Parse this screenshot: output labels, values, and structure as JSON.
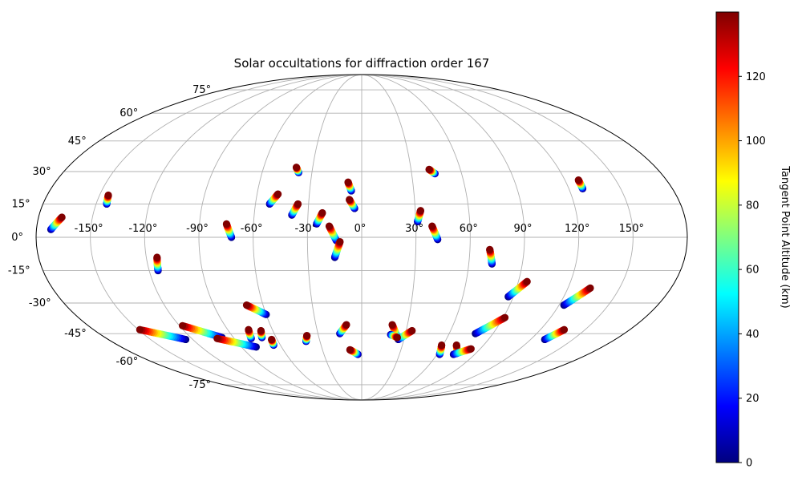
{
  "chart_data": {
    "type": "scatter",
    "projection": "mollweide",
    "title": "Solar occultations for diffraction order 167",
    "grid": true,
    "lon_ticks": [
      -150,
      -120,
      -90,
      -60,
      -30,
      0,
      30,
      60,
      90,
      120,
      150
    ],
    "lon_tick_labels": [
      "-150°",
      "-120°",
      "-90°",
      "-60°",
      "-30°",
      "0°",
      "30°",
      "60°",
      "90°",
      "120°",
      "150°"
    ],
    "lat_ticks": [
      -75,
      -60,
      -45,
      -30,
      -15,
      0,
      15,
      30,
      45,
      60,
      75
    ],
    "lat_tick_labels": [
      "-75°",
      "-60°",
      "-45°",
      "-30°",
      "-15°",
      "0°",
      "15°",
      "30°",
      "45°",
      "60°",
      "75°"
    ],
    "colorbar": {
      "label": "Tangent Point Altitude (km)",
      "range": [
        0,
        140
      ],
      "ticks": [
        0,
        20,
        40,
        60,
        80,
        100,
        120
      ],
      "tick_labels": [
        "0",
        "20",
        "40",
        "60",
        "80",
        "100",
        "120"
      ],
      "colormap": "jet"
    },
    "series": [
      {
        "start": [
          -172,
          3.5
        ],
        "end": [
          -167,
          9
        ]
      },
      {
        "start": [
          -144,
          15
        ],
        "end": [
          -145,
          19
        ]
      },
      {
        "start": [
          -115,
          -15
        ],
        "end": [
          -114,
          -9
        ]
      },
      {
        "start": [
          -72,
          0
        ],
        "end": [
          -75,
          6
        ]
      },
      {
        "start": [
          -52,
          15
        ],
        "end": [
          -48,
          19.5
        ]
      },
      {
        "start": [
          -38,
          29.5
        ],
        "end": [
          -40,
          32
        ]
      },
      {
        "start": [
          -39,
          10
        ],
        "end": [
          -36,
          15
        ]
      },
      {
        "start": [
          -25,
          6
        ],
        "end": [
          -22,
          11
        ]
      },
      {
        "start": [
          -14,
          -1.5
        ],
        "end": [
          -18,
          5
        ]
      },
      {
        "start": [
          -15,
          -9
        ],
        "end": [
          -12,
          -2
        ]
      },
      {
        "start": [
          -6,
          21
        ],
        "end": [
          -8,
          25
        ]
      },
      {
        "start": [
          -4,
          13
        ],
        "end": [
          -7,
          17
        ]
      },
      {
        "start": [
          31,
          7
        ],
        "end": [
          33,
          12
        ]
      },
      {
        "start": [
          42,
          -1
        ],
        "end": [
          39,
          5
        ]
      },
      {
        "start": [
          44,
          29
        ],
        "end": [
          41,
          31
        ]
      },
      {
        "start": [
          73,
          -12
        ],
        "end": [
          71,
          -5.5
        ]
      },
      {
        "start": [
          128,
          22
        ],
        "end": [
          128,
          26
        ]
      },
      {
        "start": [
          87,
          -27
        ],
        "end": [
          95,
          -20
        ]
      },
      {
        "start": [
          123,
          -31
        ],
        "end": [
          133,
          -23
        ]
      },
      {
        "start": [
          -60,
          -35.5
        ],
        "end": [
          -70,
          -31
        ]
      },
      {
        "start": [
          -125,
          -48
        ],
        "end": [
          -149,
          -43
        ]
      },
      {
        "start": [
          -98,
          -47
        ],
        "end": [
          -118,
          -41
        ]
      },
      {
        "start": [
          -79,
          -52
        ],
        "end": [
          -102,
          -47.5
        ]
      },
      {
        "start": [
          -78,
          -47.5
        ],
        "end": [
          -76,
          -43
        ]
      },
      {
        "start": [
          -70,
          -47
        ],
        "end": [
          -68,
          -43.5
        ]
      },
      {
        "start": [
          -65,
          -51
        ],
        "end": [
          -64,
          -48
        ]
      },
      {
        "start": [
          -40,
          -49
        ],
        "end": [
          -38,
          -46
        ]
      },
      {
        "start": [
          -15,
          -45
        ],
        "end": [
          -10,
          -40.5
        ]
      },
      {
        "start": [
          -3,
          -56
        ],
        "end": [
          -9,
          -53.5
        ]
      },
      {
        "start": [
          25,
          -47
        ],
        "end": [
          20,
          -40.5
        ]
      },
      {
        "start": [
          26,
          -48
        ],
        "end": [
          34,
          -43.5
        ]
      },
      {
        "start": [
          20,
          -45.5
        ],
        "end": [
          25,
          -47
        ]
      },
      {
        "start": [
          62,
          -56
        ],
        "end": [
          59,
          -51
        ]
      },
      {
        "start": [
          75,
          -55.5
        ],
        "end": [
          70,
          -51
        ]
      },
      {
        "start": [
          73,
          -56
        ],
        "end": [
          83,
          -53
        ]
      },
      {
        "start": [
          78,
          -45
        ],
        "end": [
          91,
          -37
        ]
      },
      {
        "start": [
          130,
          -48
        ],
        "end": [
          136,
          -43
        ]
      }
    ]
  }
}
